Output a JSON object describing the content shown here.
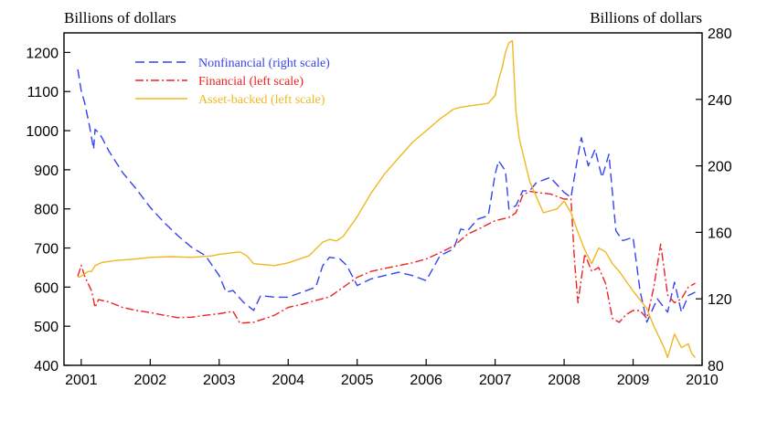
{
  "chart_data": {
    "type": "line",
    "left_unit_label": "Billions of dollars",
    "right_unit_label": "Billions of dollars",
    "xlim": [
      2000.75,
      2010
    ],
    "x_ticks": [
      2001,
      2002,
      2003,
      2004,
      2005,
      2006,
      2007,
      2008,
      2009,
      2010
    ],
    "x_tick_labels": [
      "2001",
      "2002",
      "2003",
      "2004",
      "2005",
      "2006",
      "2007",
      "2008",
      "2009",
      "2010"
    ],
    "ylim_left": [
      400,
      1250
    ],
    "y_ticks_left": [
      400,
      500,
      600,
      700,
      800,
      900,
      1000,
      1100,
      1200
    ],
    "y_tick_labels_left": [
      "400",
      "500",
      "600",
      "700",
      "800",
      "900",
      "1000",
      "1100",
      "1200"
    ],
    "ylim_right": [
      80,
      280
    ],
    "y_ticks_right": [
      80,
      120,
      160,
      200,
      240,
      280
    ],
    "y_tick_labels_right": [
      "80",
      "120",
      "160",
      "200",
      "240",
      "280"
    ],
    "grid": false,
    "legend_position": "top-left",
    "series": [
      {
        "name": "Nonfinancial (right scale)",
        "axis": "right",
        "color": "#3344ee",
        "dash": "dashed",
        "x": [
          2000.95,
          2001.0,
          2001.05,
          2001.12,
          2001.18,
          2001.2,
          2001.25,
          2001.3,
          2001.4,
          2001.6,
          2001.8,
          2002.0,
          2002.2,
          2002.4,
          2002.6,
          2002.8,
          2003.0,
          2003.1,
          2003.2,
          2003.35,
          2003.5,
          2003.6,
          2003.8,
          2004.0,
          2004.2,
          2004.4,
          2004.5,
          2004.6,
          2004.75,
          2004.85,
          2005.0,
          2005.2,
          2005.4,
          2005.6,
          2005.8,
          2006.0,
          2006.2,
          2006.4,
          2006.5,
          2006.6,
          2006.75,
          2006.9,
          2007.0,
          2007.05,
          2007.15,
          2007.2,
          2007.3,
          2007.4,
          2007.5,
          2007.6,
          2007.8,
          2008.0,
          2008.1,
          2008.2,
          2008.25,
          2008.35,
          2008.45,
          2008.5,
          2008.55,
          2008.65,
          2008.75,
          2008.85,
          2009.0,
          2009.1,
          2009.2,
          2009.35,
          2009.5,
          2009.6,
          2009.7,
          2009.8,
          2009.9
        ],
        "values": [
          258,
          245,
          238,
          224,
          210,
          222,
          220,
          217,
          209,
          196,
          186,
          175,
          166,
          158,
          151,
          146,
          134,
          124,
          125,
          118,
          113,
          122,
          121,
          121,
          124,
          127,
          140,
          145,
          144,
          140,
          128,
          132,
          134,
          136,
          134,
          131,
          146,
          150,
          162,
          161,
          168,
          170,
          195,
          203,
          197,
          174,
          176,
          185,
          185,
          190,
          193,
          184,
          181,
          206,
          217,
          200,
          210,
          201,
          193,
          207,
          161,
          155,
          157,
          125,
          106,
          120,
          112,
          130,
          112,
          122,
          124
        ]
      },
      {
        "name": "Financial (left scale)",
        "axis": "left",
        "color": "#ee2222",
        "dash": "dashdot",
        "x": [
          2000.95,
          2001.0,
          2001.05,
          2001.15,
          2001.2,
          2001.25,
          2001.4,
          2001.6,
          2001.8,
          2002.0,
          2002.2,
          2002.4,
          2002.6,
          2002.8,
          2003.0,
          2003.2,
          2003.3,
          2003.5,
          2003.8,
          2004.0,
          2004.2,
          2004.4,
          2004.6,
          2004.8,
          2005.0,
          2005.2,
          2005.4,
          2005.6,
          2005.8,
          2006.0,
          2006.2,
          2006.4,
          2006.6,
          2006.8,
          2007.0,
          2007.2,
          2007.3,
          2007.4,
          2007.5,
          2007.6,
          2007.8,
          2008.0,
          2008.1,
          2008.15,
          2008.2,
          2008.3,
          2008.4,
          2008.5,
          2008.6,
          2008.7,
          2008.8,
          2008.9,
          2009.0,
          2009.1,
          2009.2,
          2009.3,
          2009.4,
          2009.5,
          2009.6,
          2009.7,
          2009.8,
          2009.85,
          2009.9
        ],
        "values": [
          628,
          656,
          628,
          590,
          548,
          568,
          562,
          548,
          540,
          535,
          528,
          522,
          523,
          528,
          532,
          538,
          508,
          510,
          528,
          548,
          556,
          566,
          575,
          600,
          625,
          640,
          648,
          655,
          662,
          672,
          688,
          705,
          735,
          752,
          770,
          778,
          790,
          835,
          845,
          842,
          838,
          825,
          825,
          668,
          560,
          685,
          640,
          650,
          610,
          520,
          510,
          530,
          540,
          540,
          520,
          600,
          710,
          580,
          560,
          570,
          600,
          605,
          610
        ]
      },
      {
        "name": "Asset-backed (left scale)",
        "axis": "left",
        "color": "#f0b820",
        "dash": "solid",
        "x": [
          2000.95,
          2001.0,
          2001.1,
          2001.15,
          2001.2,
          2001.3,
          2001.5,
          2001.8,
          2002.0,
          2002.3,
          2002.6,
          2002.9,
          2003.0,
          2003.3,
          2003.4,
          2003.5,
          2003.8,
          2004.0,
          2004.3,
          2004.5,
          2004.6,
          2004.7,
          2004.8,
          2005.0,
          2005.2,
          2005.4,
          2005.6,
          2005.8,
          2006.0,
          2006.2,
          2006.4,
          2006.5,
          2006.9,
          2007.0,
          2007.05,
          2007.1,
          2007.15,
          2007.2,
          2007.25,
          2007.3,
          2007.35,
          2007.5,
          2007.7,
          2007.9,
          2008.0,
          2008.1,
          2008.2,
          2008.3,
          2008.4,
          2008.5,
          2008.6,
          2008.7,
          2008.8,
          2009.0,
          2009.2,
          2009.3,
          2009.45,
          2009.5,
          2009.6,
          2009.7,
          2009.8,
          2009.85,
          2009.9
        ],
        "values": [
          625,
          628,
          640,
          640,
          655,
          663,
          668,
          672,
          676,
          678,
          676,
          680,
          684,
          690,
          680,
          660,
          655,
          662,
          680,
          715,
          722,
          718,
          730,
          780,
          840,
          890,
          930,
          970,
          1000,
          1030,
          1055,
          1060,
          1070,
          1090,
          1130,
          1160,
          1200,
          1225,
          1230,
          1050,
          980,
          870,
          790,
          800,
          820,
          790,
          740,
          695,
          660,
          700,
          690,
          660,
          640,
          590,
          545,
          500,
          445,
          420,
          480,
          445,
          455,
          430,
          420
        ]
      }
    ]
  }
}
